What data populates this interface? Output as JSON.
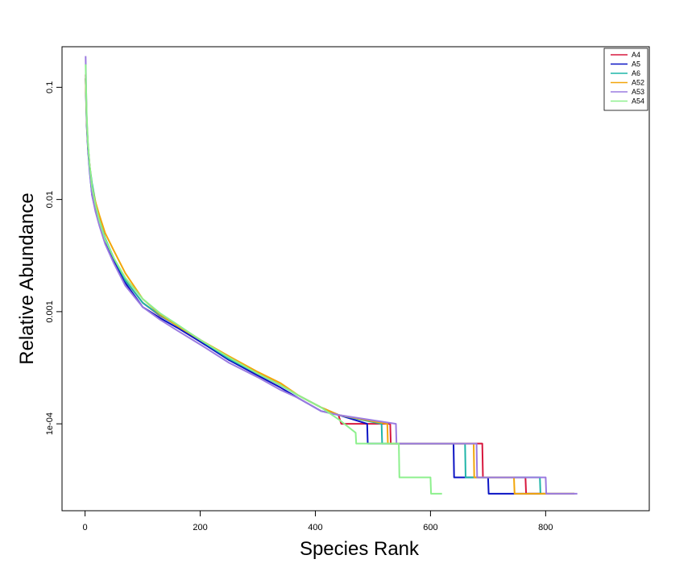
{
  "chart_data": {
    "type": "line",
    "title": "",
    "xlabel": "Species Rank",
    "ylabel": "Relative Abundance",
    "x_scale": "linear",
    "y_scale": "log",
    "xlim": [
      -40,
      980
    ],
    "ylim": [
      1.68e-05,
      0.23
    ],
    "x_ticks": [
      0,
      200,
      400,
      600,
      800
    ],
    "x_tick_labels": [
      "0",
      "200",
      "400",
      "600",
      "800"
    ],
    "y_ticks": [
      0.1,
      0.01,
      0.001,
      0.0001
    ],
    "y_tick_labels": [
      "0.1",
      "0.01",
      "0.001",
      "1e-04"
    ],
    "grid": false,
    "legend_position": "top-right",
    "series": [
      {
        "name": "A4",
        "color": "#d7183e",
        "x": [
          1,
          2,
          3,
          5,
          8,
          12,
          18,
          25,
          35,
          50,
          70,
          100,
          130,
          160,
          200,
          250,
          300,
          340,
          370,
          410,
          440,
          445,
          530,
          531,
          690,
          691,
          765,
          766,
          850
        ],
        "y": [
          0.13,
          0.08,
          0.05,
          0.03,
          0.02,
          0.012,
          0.0085,
          0.0062,
          0.0043,
          0.0029,
          0.0019,
          0.0012,
          0.00092,
          0.00076,
          0.00056,
          0.00039,
          0.00028,
          0.00022,
          0.00018,
          0.00014,
          0.00012,
          0.0001,
          0.0001,
          6.67e-05,
          6.67e-05,
          3.33e-05,
          3.33e-05,
          2.38e-05,
          2.38e-05
        ]
      },
      {
        "name": "A5",
        "color": "#0a13c4",
        "x": [
          1,
          2,
          3,
          5,
          8,
          12,
          18,
          25,
          35,
          50,
          70,
          100,
          130,
          160,
          200,
          250,
          300,
          340,
          370,
          410,
          440,
          490,
          491,
          640,
          641,
          700,
          701,
          790
        ],
        "y": [
          0.12,
          0.07,
          0.045,
          0.028,
          0.018,
          0.011,
          0.008,
          0.006,
          0.0042,
          0.0028,
          0.0018,
          0.0011,
          0.00088,
          0.00072,
          0.00054,
          0.00037,
          0.00027,
          0.00021,
          0.00017,
          0.00013,
          0.00012,
          0.0001,
          6.67e-05,
          6.67e-05,
          3.33e-05,
          3.33e-05,
          2.38e-05,
          2.38e-05
        ]
      },
      {
        "name": "A6",
        "color": "#1fb5a8",
        "x": [
          1,
          2,
          3,
          5,
          8,
          12,
          18,
          25,
          35,
          50,
          70,
          100,
          130,
          160,
          200,
          250,
          300,
          340,
          370,
          410,
          440,
          515,
          516,
          660,
          661,
          790,
          791,
          850
        ],
        "y": [
          0.12,
          0.075,
          0.048,
          0.03,
          0.02,
          0.014,
          0.0095,
          0.0065,
          0.0045,
          0.003,
          0.0019,
          0.0012,
          0.00093,
          0.00075,
          0.00056,
          0.00038,
          0.00028,
          0.00022,
          0.00018,
          0.00014,
          0.00012,
          0.0001,
          6.67e-05,
          6.67e-05,
          3.33e-05,
          3.33e-05,
          2.38e-05,
          2.38e-05
        ]
      },
      {
        "name": "A52",
        "color": "#f2a60a",
        "x": [
          1,
          2,
          3,
          5,
          8,
          12,
          18,
          25,
          35,
          50,
          70,
          100,
          130,
          160,
          200,
          250,
          300,
          340,
          370,
          410,
          440,
          525,
          526,
          675,
          676,
          745,
          746,
          850
        ],
        "y": [
          0.12,
          0.075,
          0.048,
          0.03,
          0.02,
          0.013,
          0.0095,
          0.0072,
          0.005,
          0.0035,
          0.0022,
          0.0013,
          0.00095,
          0.00075,
          0.00056,
          0.0004,
          0.00029,
          0.00023,
          0.00018,
          0.00014,
          0.00012,
          0.0001,
          6.67e-05,
          6.67e-05,
          3.33e-05,
          3.33e-05,
          2.38e-05,
          2.38e-05
        ]
      },
      {
        "name": "A53",
        "color": "#9b7be0",
        "x": [
          1,
          2,
          3,
          5,
          8,
          12,
          18,
          25,
          35,
          50,
          70,
          100,
          130,
          160,
          200,
          250,
          300,
          340,
          370,
          410,
          440,
          540,
          541,
          680,
          681,
          800,
          801,
          855
        ],
        "y": [
          0.19,
          0.09,
          0.05,
          0.03,
          0.019,
          0.011,
          0.0078,
          0.0058,
          0.004,
          0.0027,
          0.0017,
          0.0011,
          0.00085,
          0.00068,
          0.00051,
          0.00035,
          0.00026,
          0.0002,
          0.00017,
          0.00013,
          0.00012,
          0.0001,
          6.67e-05,
          6.67e-05,
          3.33e-05,
          3.33e-05,
          2.38e-05,
          2.38e-05
        ]
      },
      {
        "name": "A54",
        "color": "#8df08d",
        "x": [
          1,
          2,
          3,
          5,
          8,
          12,
          18,
          25,
          35,
          50,
          70,
          100,
          130,
          160,
          200,
          250,
          300,
          340,
          370,
          410,
          440,
          470,
          471,
          545,
          546,
          600,
          601,
          620
        ],
        "y": [
          0.16,
          0.09,
          0.055,
          0.032,
          0.02,
          0.013,
          0.009,
          0.0064,
          0.0044,
          0.003,
          0.002,
          0.0013,
          0.00097,
          0.00077,
          0.00056,
          0.00039,
          0.00028,
          0.00022,
          0.00018,
          0.00014,
          0.00011,
          8.33e-05,
          6.67e-05,
          6.67e-05,
          3.33e-05,
          3.33e-05,
          2.38e-05,
          2.38e-05
        ]
      }
    ]
  }
}
